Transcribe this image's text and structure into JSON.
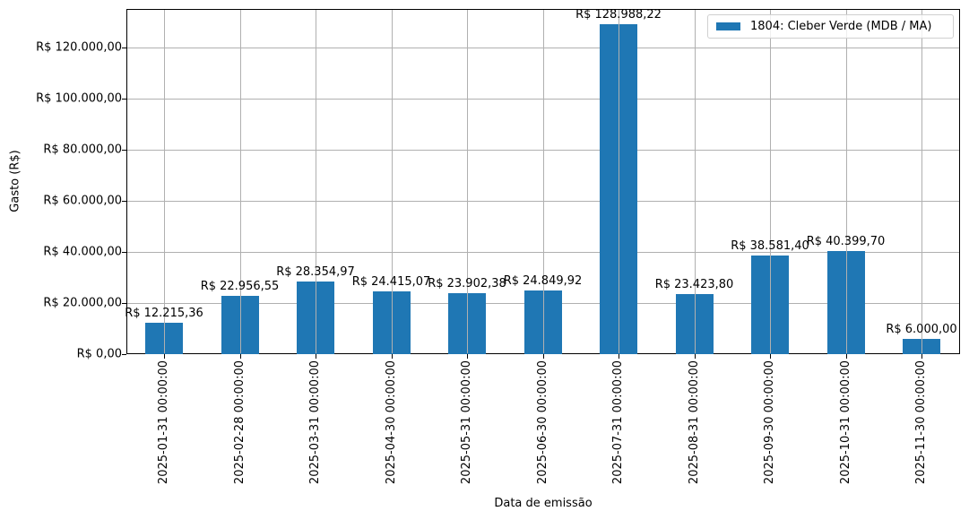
{
  "chart_data": {
    "type": "bar",
    "title": "",
    "xlabel": "Data de emissão",
    "ylabel": "Gasto (R$)",
    "ylim": [
      0,
      135000
    ],
    "grid": true,
    "legend_position": "upper right",
    "categories": [
      "2025-01-31 00:00:00",
      "2025-02-28 00:00:00",
      "2025-03-31 00:00:00",
      "2025-04-30 00:00:00",
      "2025-05-31 00:00:00",
      "2025-06-30 00:00:00",
      "2025-07-31 00:00:00",
      "2025-08-31 00:00:00",
      "2025-09-30 00:00:00",
      "2025-10-31 00:00:00",
      "2025-11-30 00:00:00"
    ],
    "series": [
      {
        "name": "1804: Cleber Verde (MDB / MA)",
        "color": "#1f77b4",
        "values": [
          12215.36,
          22956.55,
          28354.97,
          24415.07,
          23902.38,
          24849.92,
          128988.22,
          23423.8,
          38581.4,
          40399.7,
          6000.0
        ]
      }
    ],
    "data_labels": [
      "R$ 12.215,36",
      "R$ 22.956,55",
      "R$ 28.354,97",
      "R$ 24.415,07",
      "R$ 23.902,38",
      "R$ 24.849,92",
      "R$ 128.988,22",
      "R$ 23.423,80",
      "R$ 38.581,40",
      "R$ 40.399,70",
      "R$ 6.000,00"
    ],
    "yticks": [
      0,
      20000,
      40000,
      60000,
      80000,
      100000,
      120000
    ],
    "ytick_labels": [
      "R$ 0,00",
      "R$ 20.000,00",
      "R$ 40.000,00",
      "R$ 60.000,00",
      "R$ 80.000,00",
      "R$ 100.000,00",
      "R$ 120.000,00"
    ]
  },
  "legend": {
    "label": "1804: Cleber Verde (MDB / MA)"
  }
}
